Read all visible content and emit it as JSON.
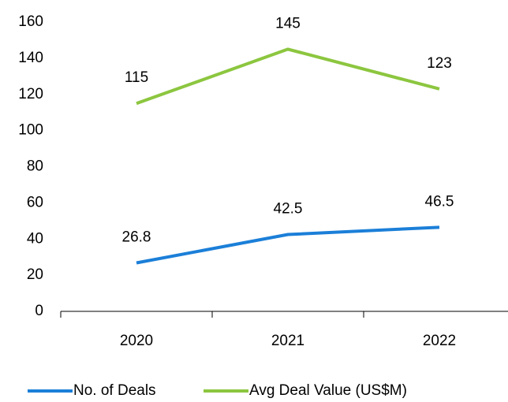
{
  "chart_data": {
    "type": "line",
    "categories": [
      "2020",
      "2021",
      "2022"
    ],
    "series": [
      {
        "name": "No. of Deals",
        "color": "#1b7fd8",
        "values": [
          26.8,
          42.5,
          46.5
        ]
      },
      {
        "name": "Avg Deal Value (US$M)",
        "color": "#8cc63f",
        "values": [
          115,
          145,
          123
        ]
      }
    ],
    "ylim": [
      0,
      160
    ],
    "yticks": [
      0,
      20,
      40,
      60,
      80,
      100,
      120,
      140,
      160
    ],
    "grid": false,
    "legend": "bottom"
  }
}
